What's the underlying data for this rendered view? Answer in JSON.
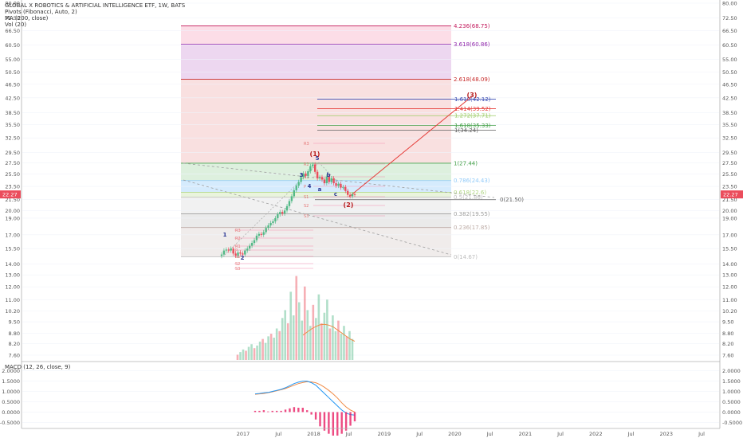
{
  "header": {
    "title": "GLOBAL X ROBOTICS & ARTIFICIAL INTELLIGENCE ETF, 1W, BATS",
    "indicators": [
      "Pivots (Fibonacci, Auto, 2)",
      "MA (200, close)",
      "Vol (20)"
    ]
  },
  "macd_label": "MACD (12, 26, close, 9)",
  "colors": {
    "up": "#53b987",
    "down": "#eb4d5c",
    "ma": "#f08a45",
    "macd": "#2196f3",
    "hist": "#e91e63",
    "wave": "#b71c1c",
    "trend": "#e53935"
  },
  "chart_data": {
    "type": "candlestick",
    "price_axis": {
      "labels": [
        "80.00",
        "72.50",
        "66.50",
        "60.50",
        "55.00",
        "50.50",
        "46.50",
        "42.50",
        "38.50",
        "35.50",
        "32.50",
        "29.50",
        "27.50",
        "25.50",
        "23.50",
        "21.50",
        "20.00",
        "19.00",
        "17.00",
        "15.50",
        "14.00",
        "13.00",
        "12.00",
        "11.00",
        "10.20",
        "9.50",
        "8.80",
        "8.20",
        "7.60"
      ],
      "current_price": "22.27",
      "scale": "log"
    },
    "macd_axis": {
      "labels": [
        "2.0000",
        "1.5000",
        "1.0000",
        "0.5000",
        "0.0000",
        "-0.5000"
      ],
      "ylim": [
        -0.6,
        2.1
      ]
    },
    "time_axis": {
      "labels": [
        "2017",
        "Jul",
        "2018",
        "Jul",
        "2019",
        "Jul",
        "2020",
        "Jul",
        "2021",
        "Jul",
        "2022",
        "Jul",
        "2023",
        "Jul"
      ]
    },
    "fib_extension": [
      {
        "label": "4.236(68.75)",
        "value": 68.75
      },
      {
        "label": "3.618(60.86)",
        "value": 60.86
      },
      {
        "label": "2.618(48.09)",
        "value": 48.09
      },
      {
        "label": "1(27.44)",
        "value": 27.44
      },
      {
        "label": "0.786(24.43)",
        "value": 24.43
      },
      {
        "label": "0.618(22.6)",
        "value": 22.6
      },
      {
        "label": "0.5(21.86)",
        "value": 21.86
      },
      {
        "label": "0.382(19.55)",
        "value": 19.55
      },
      {
        "label": "0.236(17.85)",
        "value": 17.85
      },
      {
        "label": "0(14.67)",
        "value": 14.67
      }
    ],
    "fib_projection": [
      {
        "label": "1.618(42.12)",
        "value": 42.12
      },
      {
        "label": "1.414(39.52)",
        "value": 39.52
      },
      {
        "label": "1.272(37.71)",
        "value": 37.71
      },
      {
        "label": "1.618(35.33)",
        "value": 35.33
      },
      {
        "label": "1(34.24)",
        "value": 34.24
      },
      {
        "label": "0(21.50)",
        "value": 21.5
      }
    ],
    "pivot_labels": [
      "R3",
      "R2",
      "R1",
      "P",
      "S1",
      "S2",
      "S3"
    ],
    "wave_labels": [
      {
        "text": "1",
        "type": "minor"
      },
      {
        "text": "2",
        "type": "minor"
      },
      {
        "text": "3",
        "type": "minor"
      },
      {
        "text": "4",
        "type": "minor"
      },
      {
        "text": "5",
        "type": "minor"
      },
      {
        "text": "a",
        "type": "minor"
      },
      {
        "text": "b",
        "type": "minor"
      },
      {
        "text": "c",
        "type": "minor"
      },
      {
        "text": "(1)",
        "type": "major"
      },
      {
        "text": "(2)",
        "type": "major"
      },
      {
        "text": "(3)",
        "type": "major"
      }
    ],
    "weekly_closes": [
      14.9,
      15.3,
      15.4,
      15.3,
      15.5,
      15.0,
      14.8,
      15.1,
      15.0,
      14.9,
      15.3,
      15.5,
      15.8,
      16.1,
      16.4,
      16.9,
      17.1,
      17.0,
      17.3,
      17.8,
      18.1,
      18.4,
      18.6,
      19.0,
      19.5,
      19.8,
      19.6,
      20.0,
      20.6,
      21.3,
      22.0,
      22.9,
      23.6,
      24.2,
      25.0,
      25.6,
      25.2,
      26.0,
      26.9,
      27.2,
      25.9,
      24.8,
      25.0,
      24.6,
      24.0,
      25.1,
      24.2,
      24.8,
      24.0,
      23.6,
      23.9,
      23.3,
      23.4,
      22.8,
      22.2,
      22.0,
      22.3,
      22.27
    ],
    "macd_line": [
      0.88,
      0.9,
      0.93,
      0.95,
      1.0,
      1.05,
      1.1,
      1.18,
      1.28,
      1.38,
      1.45,
      1.5,
      1.5,
      1.42,
      1.3,
      1.1,
      0.9,
      0.7,
      0.5,
      0.3,
      0.1,
      -0.05,
      -0.12,
      -0.15
    ],
    "signal_line": [
      0.86,
      0.88,
      0.9,
      0.94,
      0.98,
      1.03,
      1.08,
      1.14,
      1.22,
      1.3,
      1.38,
      1.43,
      1.47,
      1.46,
      1.42,
      1.33,
      1.2,
      1.05,
      0.88,
      0.68,
      0.45,
      0.25,
      0.1,
      0.0
    ],
    "ma_line": [
      1.2,
      1.35,
      1.5,
      1.62,
      1.7,
      1.72,
      1.68,
      1.6,
      1.45,
      1.3,
      1.15,
      1.0,
      0.9
    ],
    "volume": [
      0.2,
      0.3,
      0.4,
      0.35,
      0.5,
      0.6,
      0.45,
      0.55,
      0.7,
      0.8,
      0.65,
      0.9,
      1.0,
      0.85,
      1.2,
      1.1,
      1.6,
      1.9,
      1.4,
      2.6,
      1.7,
      3.2,
      2.2,
      1.5,
      2.8,
      1.9,
      1.3,
      2.1,
      1.6,
      2.5,
      1.4,
      1.8,
      2.3,
      1.2,
      1.7,
      1.1,
      1.5,
      1.0,
      1.3,
      0.9,
      1.1,
      0.8
    ]
  }
}
